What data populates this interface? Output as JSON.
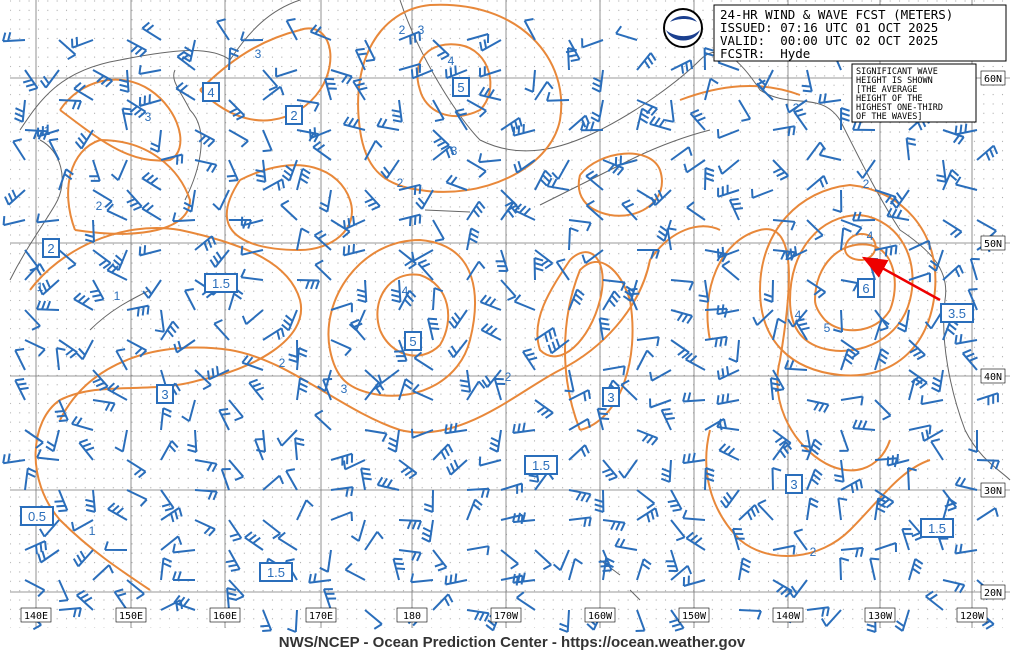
{
  "header": {
    "lines": [
      "24-HR WIND & WAVE FCST (METERS)",
      "ISSUED: 07:16 UTC 01 OCT 2025",
      "VALID:  00:00 UTC 02 OCT 2025",
      "FCSTR:  Hyde"
    ]
  },
  "note": [
    "SIGNIFICANT WAVE",
    "HEIGHT IS SHOWN",
    "[THE AVERAGE",
    "HEIGHT OF THE",
    "HIGHEST ONE-THIRD",
    "OF THE WAVES]"
  ],
  "longitude_labels": [
    "140E",
    "150E",
    "160E",
    "170E",
    "180",
    "170W",
    "160W",
    "150W",
    "140W",
    "130W",
    "120W"
  ],
  "latitude_labels": [
    "60N",
    "50N",
    "40N",
    "30N",
    "20N"
  ],
  "boxed_labels": [
    "4",
    "2",
    "2",
    "1.5",
    "3",
    "5",
    "5",
    "3",
    "1.5",
    "3",
    "6",
    "3.5",
    "0.5",
    "1.5",
    "1.5"
  ],
  "contour_labels": [
    "3",
    "2",
    "3",
    "4",
    "3",
    "1",
    "3",
    "2",
    "2",
    "1",
    "1",
    "4",
    "2",
    "3",
    "2",
    "2",
    "2",
    "4",
    "4",
    "5",
    "1",
    "2"
  ],
  "footer": "NWS/NCEP - Ocean Prediction Center - https://ocean.weather.gov"
}
